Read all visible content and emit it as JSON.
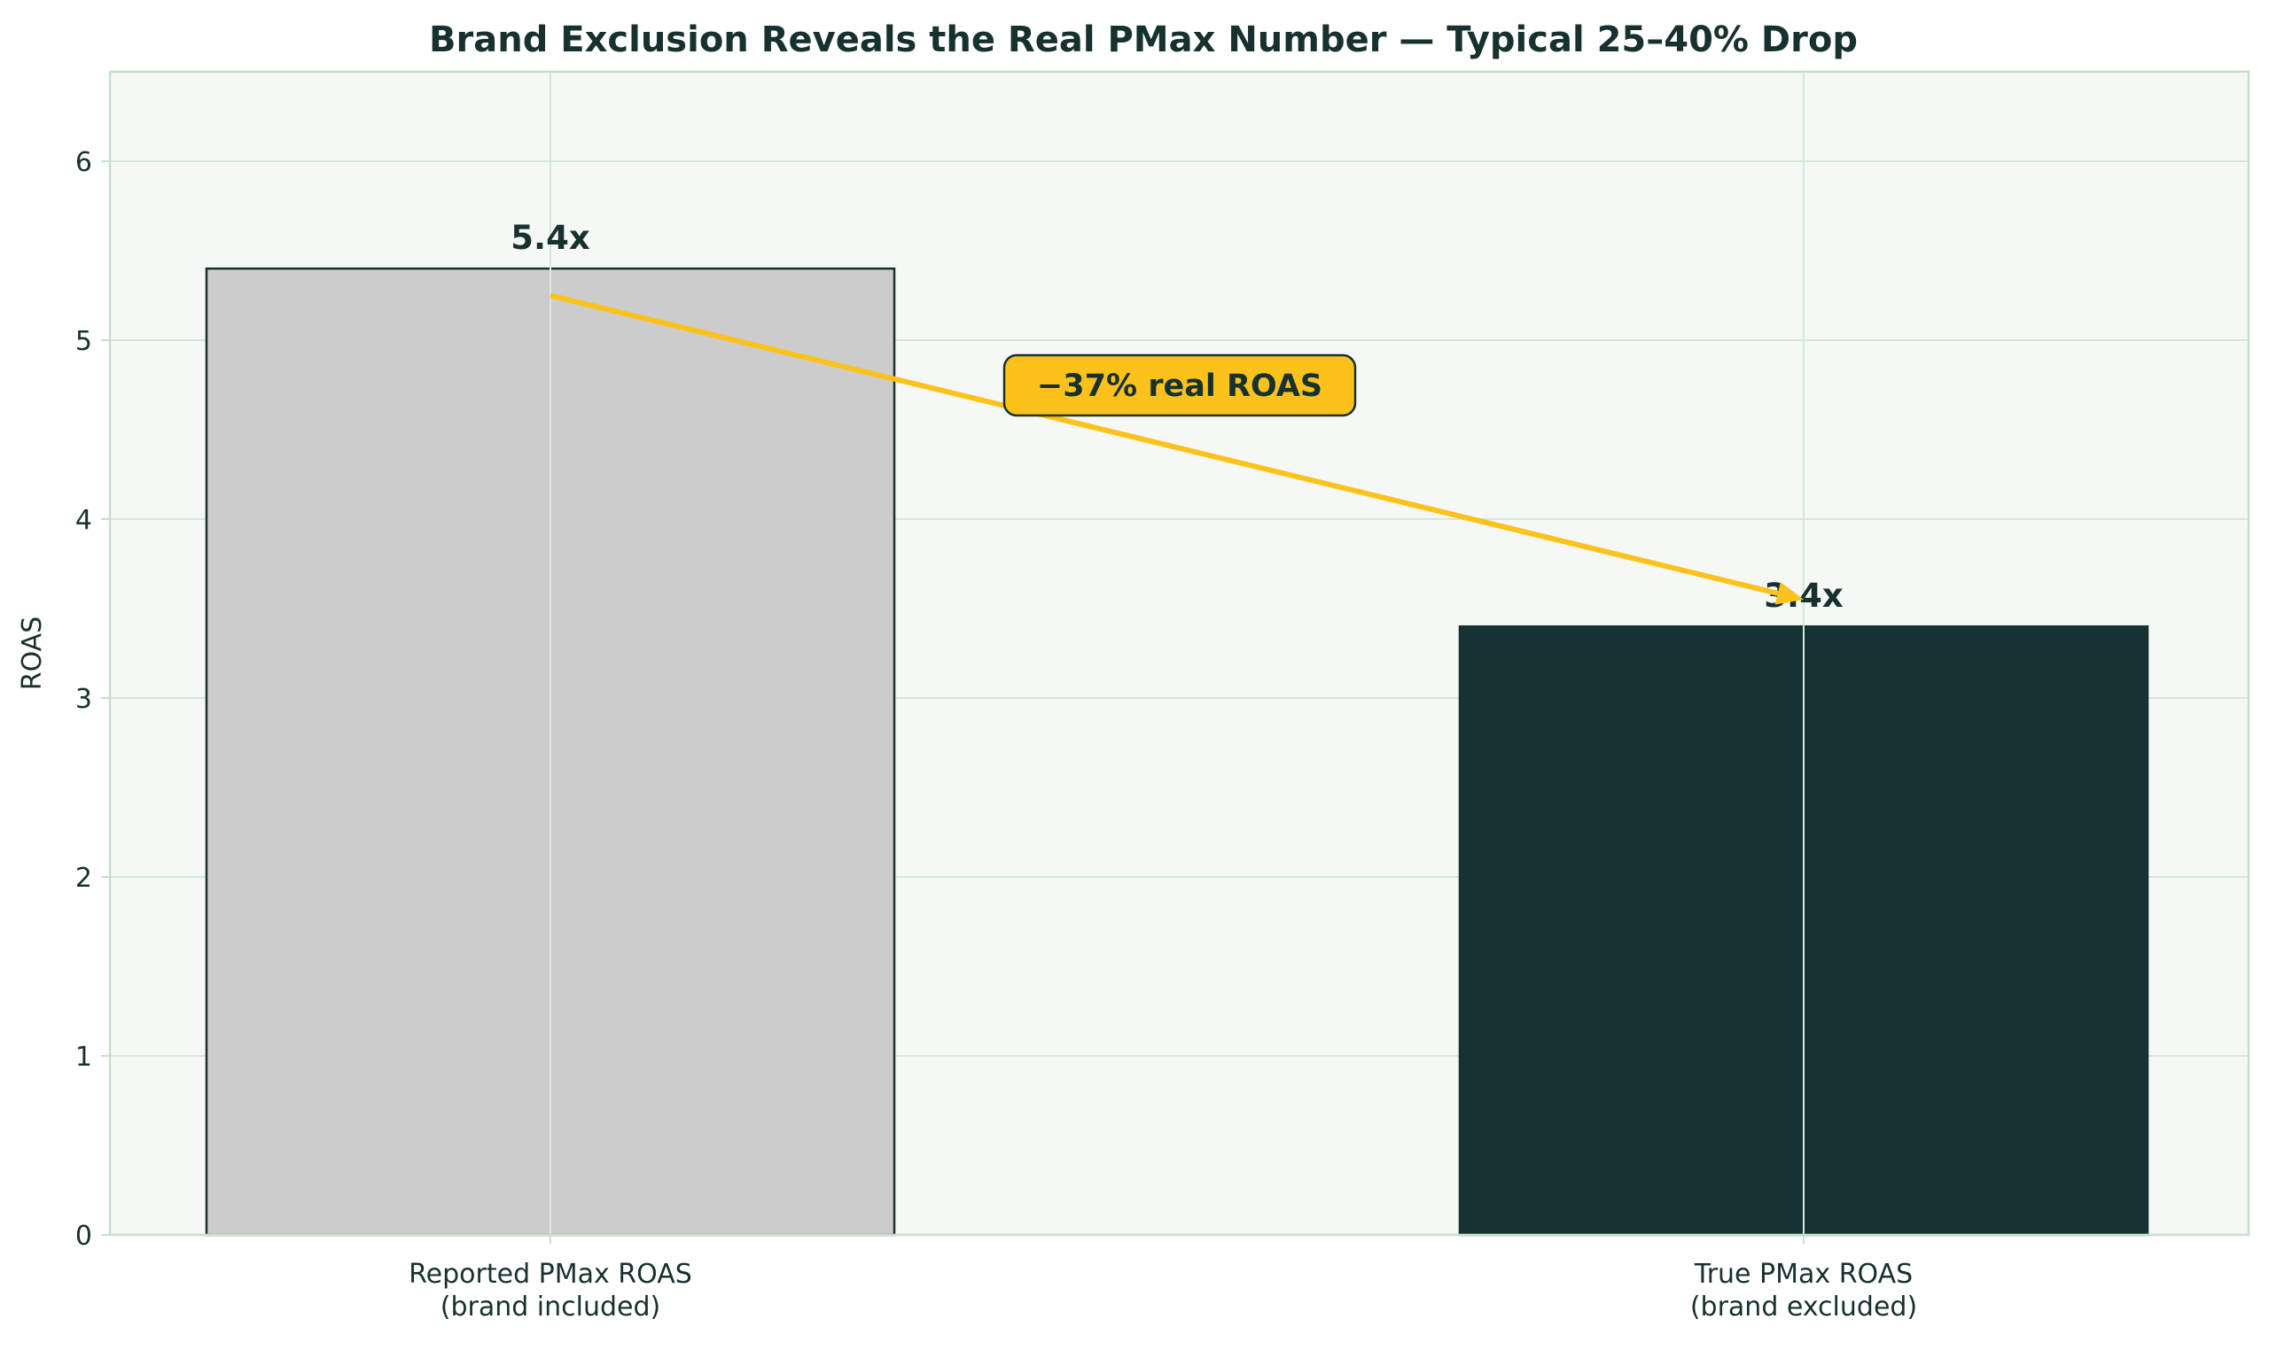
{
  "colors": {
    "text": "#17312f",
    "plot_background": "#f5f8f5",
    "grid": "#d5e8da",
    "spine": "#c5e0cb",
    "arrow": "#fbc21b",
    "annotation_box": "#fbc21b"
  },
  "chart_data": {
    "type": "bar",
    "title": "Brand Exclusion Reveals the Real PMax Number — Typical 25–40% Drop",
    "xlabel": "",
    "ylabel": "ROAS",
    "ylim": [
      0,
      6.5
    ],
    "yticks": [
      0,
      1,
      2,
      3,
      4,
      5,
      6
    ],
    "grid": true,
    "categories": [
      [
        "Reported PMax ROAS",
        "(brand included)"
      ],
      [
        "True PMax ROAS",
        "(brand excluded)"
      ]
    ],
    "values": [
      5.4,
      3.4
    ],
    "data_labels": [
      "5.4x",
      "3.4x"
    ],
    "bar_colors": [
      "#cccccc",
      "#173234"
    ],
    "bar_edge_color": "#17312f",
    "annotation": {
      "text": "−37% real ROAS",
      "from": {
        "category_index": 0,
        "y": 5.25
      },
      "to": {
        "category_index": 1,
        "y": 3.55
      }
    }
  }
}
